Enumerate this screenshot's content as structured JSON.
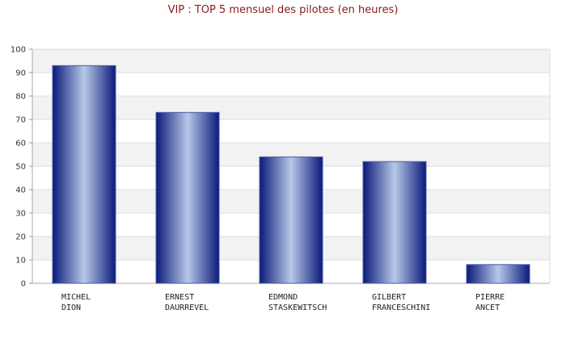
{
  "chart_data": {
    "type": "bar",
    "title": "VIP : TOP 5 mensuel des pilotes (en heures)",
    "categories": [
      [
        "MICHEL",
        "DION"
      ],
      [
        "ERNEST",
        "DAURREVEL"
      ],
      [
        "EDMOND",
        "STASKEWITSCH"
      ],
      [
        "GILBERT",
        "FRANCESCHINI"
      ],
      [
        "PIERRE",
        "ANCET"
      ]
    ],
    "values": [
      93,
      73,
      54,
      52,
      8
    ],
    "xlabel": "",
    "ylabel": "",
    "ylim": [
      0,
      100
    ],
    "yticks": [
      0,
      10,
      20,
      30,
      40,
      50,
      60,
      70,
      80,
      90,
      100
    ],
    "grid": true,
    "legend": "none",
    "colors": {
      "title": "#8b1a1a",
      "bar_dark": "#0a1a7a",
      "bar_light": "#b8c8e8",
      "band": "#f2f2f2",
      "grid": "#dddddd"
    }
  }
}
